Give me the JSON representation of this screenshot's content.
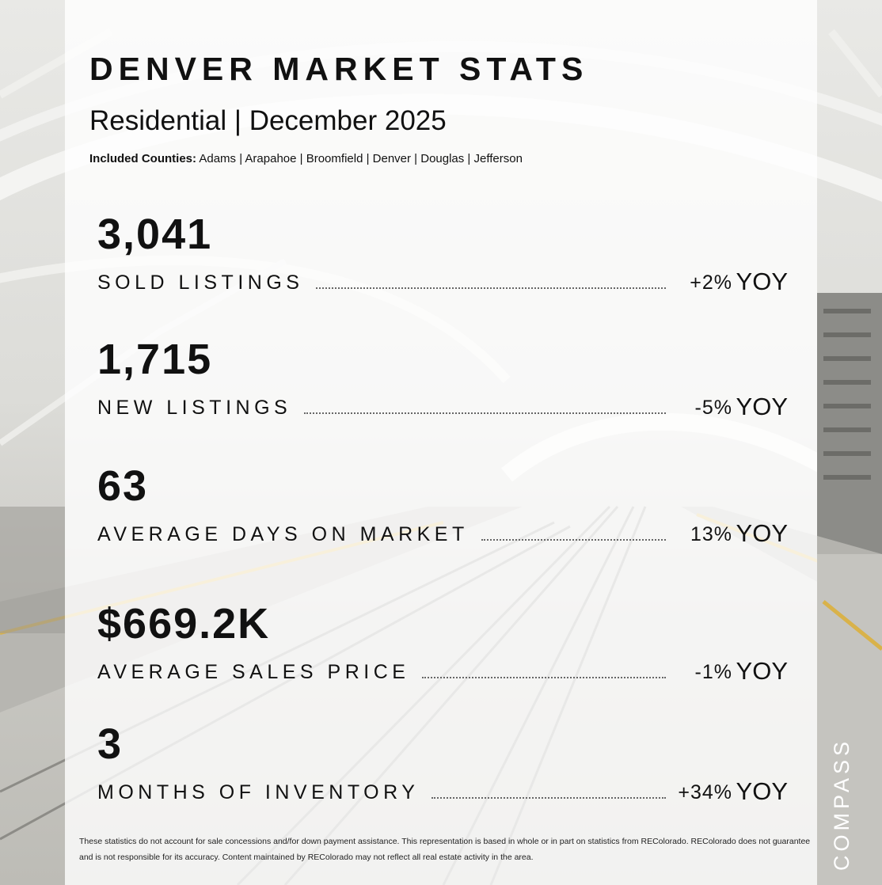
{
  "header": {
    "title": "DENVER MARKET STATS",
    "subtitle": "Residential | December 2025",
    "counties_label": "Included Counties:",
    "counties": "Adams | Arapahoe | Broomfield | Denver | Douglas | Jefferson"
  },
  "stats": [
    {
      "value": "3,041",
      "label": "SOLD LISTINGS",
      "change": "+2%",
      "yoy": "YOY"
    },
    {
      "value": "1,715",
      "label": "NEW LISTINGS",
      "change": "-5%",
      "yoy": "YOY"
    },
    {
      "value": "63",
      "label": "AVERAGE DAYS ON MARKET",
      "change": "13%",
      "yoy": "YOY"
    },
    {
      "value": "$669.2K",
      "label": "AVERAGE SALES PRICE",
      "change": "-1%",
      "yoy": "YOY"
    },
    {
      "value": "3",
      "label": "MONTHS OF INVENTORY",
      "change": "+34%",
      "yoy": "YOY"
    }
  ],
  "disclaimer": "These statistics do not account for sale concessions and/for down payment assistance. This representation is based in whole or in part on statistics from REColorado. REColorado does not guarantee and is not responsible for its accuracy. Content maintained by REColorado may not reflect all real estate activity in the area.",
  "brand": "COMPASS"
}
